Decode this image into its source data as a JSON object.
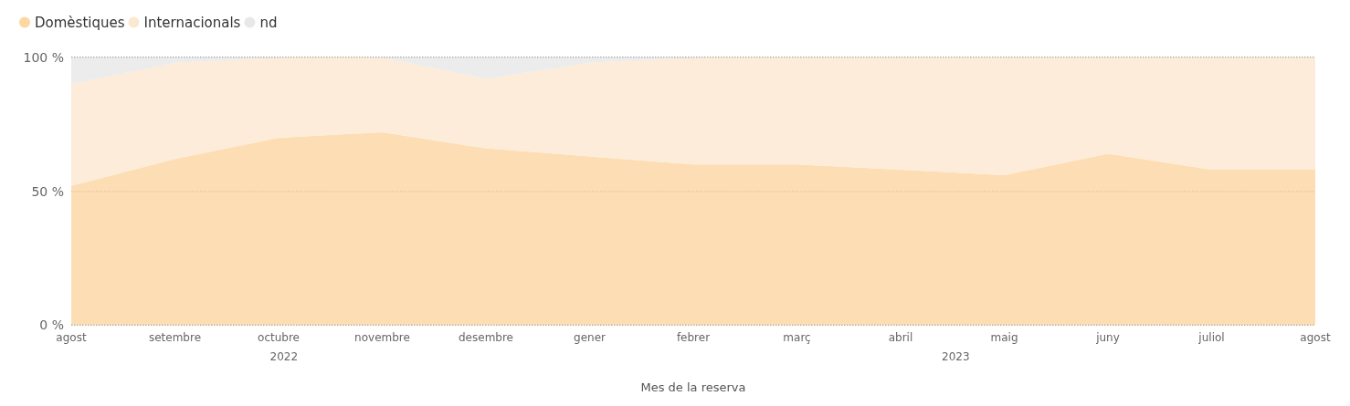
{
  "chart_data": {
    "type": "area",
    "stacked": true,
    "xlabel": "Mes de la reserva",
    "categories": [
      "agost",
      "setembre",
      "octubre",
      "novembre",
      "desembre",
      "gener",
      "febrer",
      "març",
      "abril",
      "maig",
      "juny",
      "juliol",
      "agost"
    ],
    "series": [
      {
        "name": "Domèstiques",
        "color": "#fdd7a4",
        "values": [
          52,
          62,
          70,
          72,
          66,
          63,
          60,
          60,
          58,
          56,
          64,
          58,
          58
        ]
      },
      {
        "name": "Internacionals",
        "color": "#fbe8d1",
        "values": [
          38,
          36,
          30,
          28,
          26,
          35,
          40,
          40,
          42,
          44,
          36,
          42,
          42
        ]
      },
      {
        "name": "nd",
        "color": "#e8e8e8",
        "values": [
          10,
          2,
          0,
          0,
          8,
          2,
          0,
          0,
          0,
          0,
          0,
          0,
          0
        ]
      }
    ],
    "ylim": [
      0,
      100
    ],
    "yticks": [
      {
        "value": 0,
        "label": "0 %"
      },
      {
        "value": 50,
        "label": "50 %"
      },
      {
        "value": 100,
        "label": "100 %"
      }
    ],
    "grid": "y",
    "legend": "top left",
    "annotations": [
      "2022",
      "2023"
    ]
  }
}
